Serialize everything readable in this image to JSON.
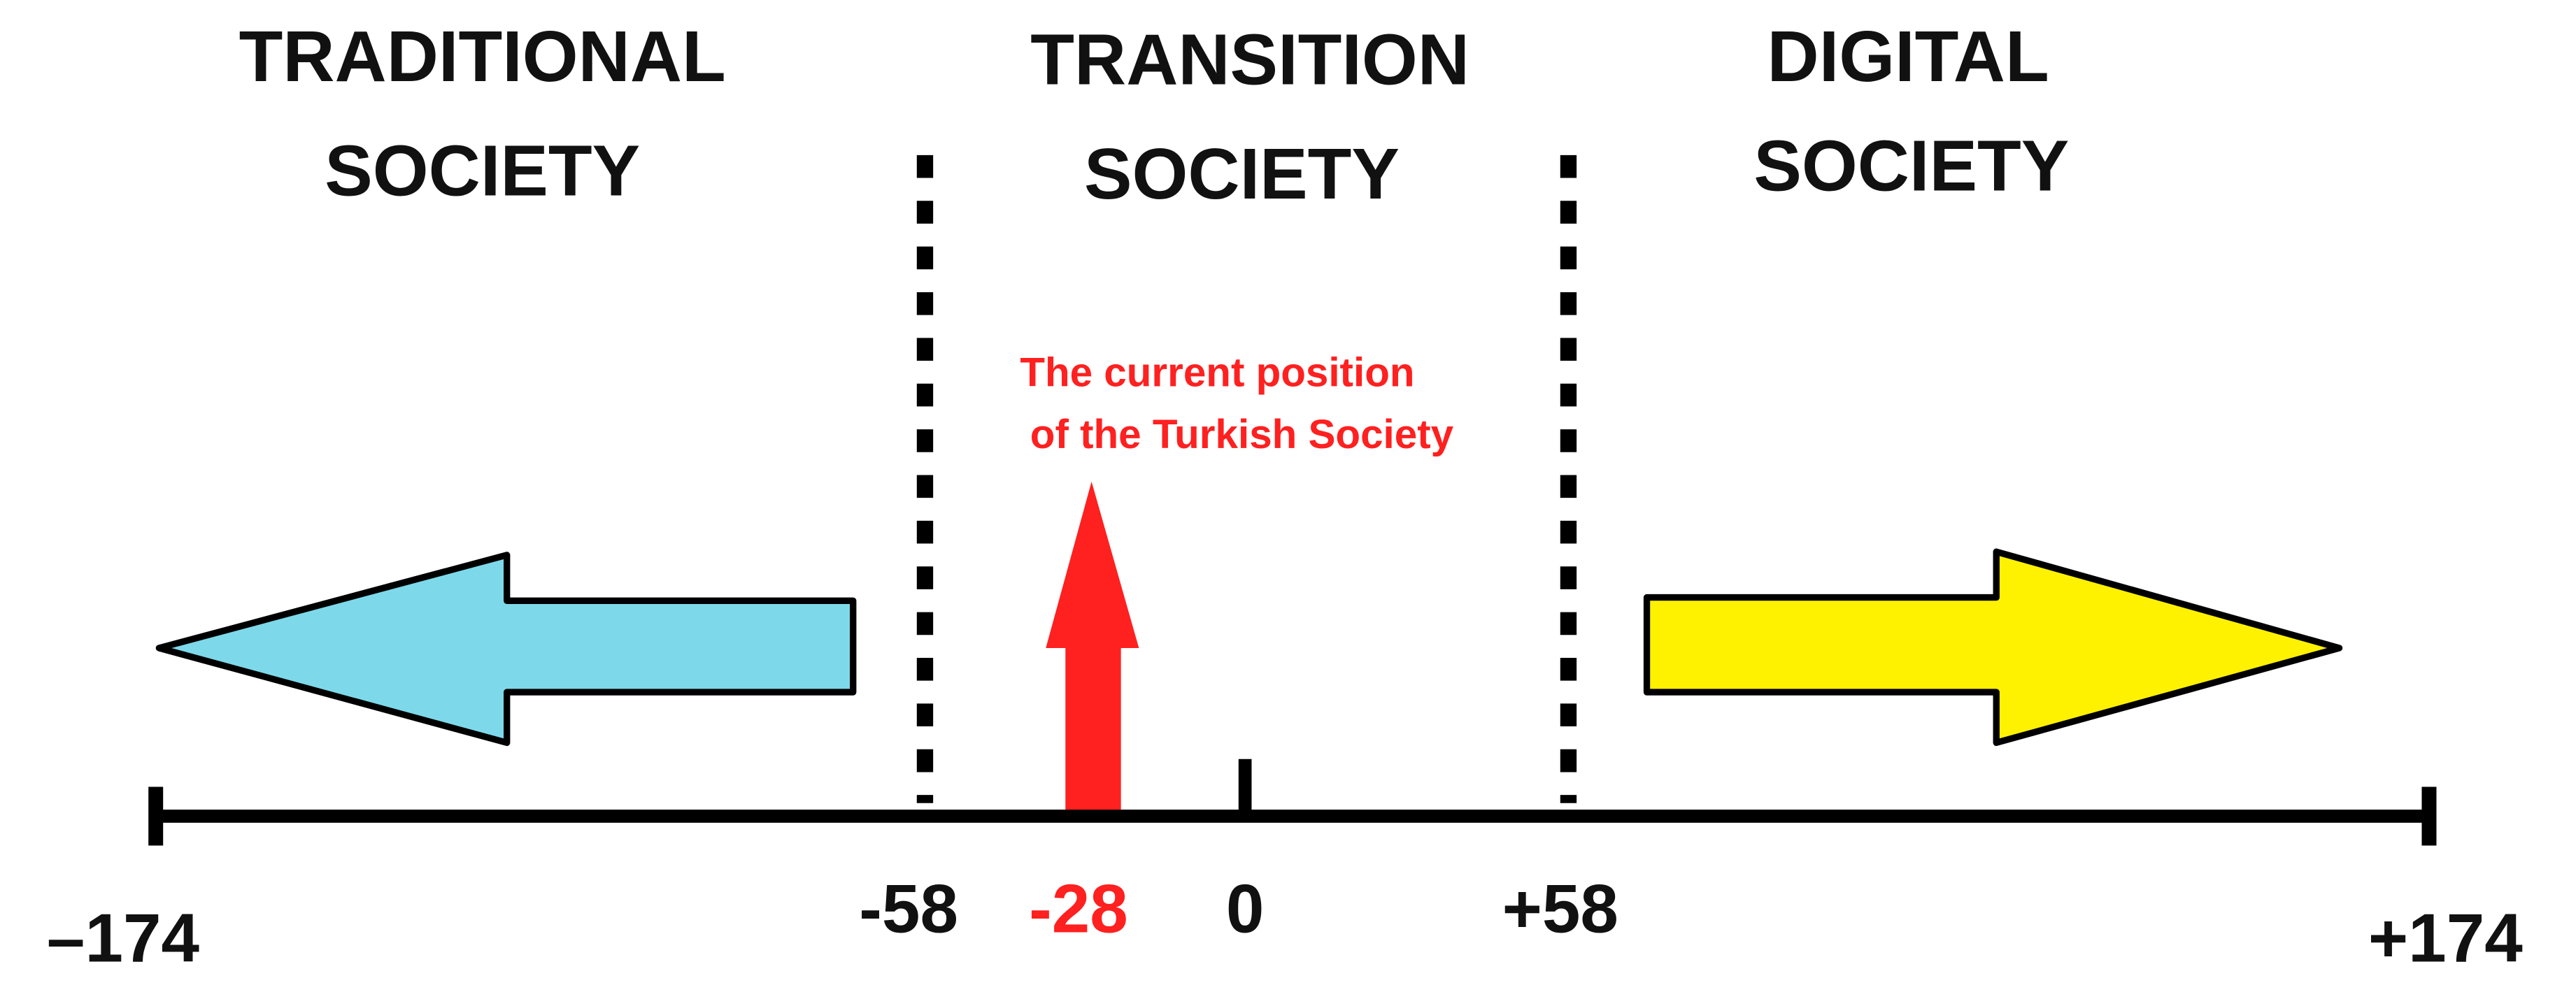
{
  "sections": [
    {
      "lines": [
        "TRADITIONAL",
        "SOCIETY"
      ]
    },
    {
      "lines": [
        "TRANSITION",
        "SOCIETY"
      ]
    },
    {
      "lines": [
        "DIGITAL",
        "SOCIETY"
      ]
    }
  ],
  "annotation": {
    "lines": [
      "The current position",
      "of the Turkish Society"
    ]
  },
  "scale": {
    "labels": [
      "–174",
      "-58",
      "-28",
      "0",
      "+58",
      "+174"
    ]
  }
}
